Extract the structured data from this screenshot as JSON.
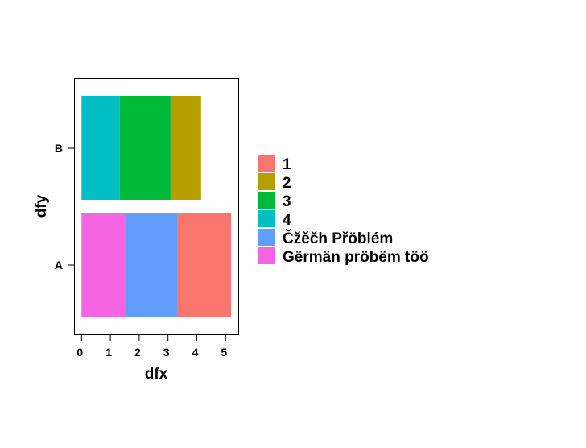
{
  "chart_data": {
    "type": "bar",
    "orientation": "horizontal",
    "stacked": true,
    "xlabel": "dfx",
    "ylabel": "dfy",
    "categories": [
      "A",
      "B"
    ],
    "xlim": [
      0,
      5.3
    ],
    "xticks": [
      "0",
      "1",
      "2",
      "3",
      "4",
      "5"
    ],
    "grid": false,
    "legend_position": "right",
    "series": [
      {
        "name": "Gërmän pröbëm töö",
        "color": "#F564E3",
        "values": [
          1.53,
          0
        ]
      },
      {
        "name": "Čžěčh Přöblém",
        "color": "#619CFF",
        "values": [
          1.81,
          0
        ]
      },
      {
        "name": "1",
        "color": "#F8766D",
        "values": [
          1.85,
          0
        ]
      },
      {
        "name": "4",
        "color": "#00BFC4",
        "values": [
          0,
          1.33
        ]
      },
      {
        "name": "3",
        "color": "#00BA38",
        "values": [
          0,
          1.76
        ]
      },
      {
        "name": "2",
        "color": "#B79F00",
        "values": [
          0,
          1.06
        ]
      }
    ],
    "legend": [
      "1",
      "2",
      "3",
      "4",
      "Čžěčh Přöblém",
      "Gërmän pröbëm töö"
    ]
  }
}
